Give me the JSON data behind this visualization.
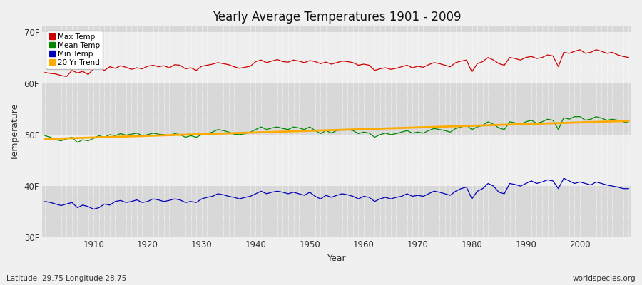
{
  "title": "Yearly Average Temperatures 1901 - 2009",
  "xlabel": "Year",
  "ylabel": "Temperature",
  "subtitle": "Latitude -29.75 Longitude 28.75",
  "watermark": "worldspecies.org",
  "years": [
    1901,
    1902,
    1903,
    1904,
    1905,
    1906,
    1907,
    1908,
    1909,
    1910,
    1911,
    1912,
    1913,
    1914,
    1915,
    1916,
    1917,
    1918,
    1919,
    1920,
    1921,
    1922,
    1923,
    1924,
    1925,
    1926,
    1927,
    1928,
    1929,
    1930,
    1931,
    1932,
    1933,
    1934,
    1935,
    1936,
    1937,
    1938,
    1939,
    1940,
    1941,
    1942,
    1943,
    1944,
    1945,
    1946,
    1947,
    1948,
    1949,
    1950,
    1951,
    1952,
    1953,
    1954,
    1955,
    1956,
    1957,
    1958,
    1959,
    1960,
    1961,
    1962,
    1963,
    1964,
    1965,
    1966,
    1967,
    1968,
    1969,
    1970,
    1971,
    1972,
    1973,
    1974,
    1975,
    1976,
    1977,
    1978,
    1979,
    1980,
    1981,
    1982,
    1983,
    1984,
    1985,
    1986,
    1987,
    1988,
    1989,
    1990,
    1991,
    1992,
    1993,
    1994,
    1995,
    1996,
    1997,
    1998,
    1999,
    2000,
    2001,
    2002,
    2003,
    2004,
    2005,
    2006,
    2007,
    2008,
    2009
  ],
  "max_temp": [
    62.1,
    61.9,
    61.8,
    61.5,
    61.3,
    62.5,
    62.0,
    62.3,
    61.7,
    62.8,
    63.0,
    62.5,
    63.2,
    62.9,
    63.4,
    63.1,
    62.7,
    63.0,
    62.8,
    63.3,
    63.5,
    63.2,
    63.4,
    63.0,
    63.6,
    63.5,
    62.8,
    63.0,
    62.5,
    63.3,
    63.5,
    63.7,
    64.0,
    63.8,
    63.6,
    63.2,
    62.9,
    63.1,
    63.3,
    64.2,
    64.5,
    64.0,
    64.3,
    64.6,
    64.2,
    64.1,
    64.5,
    64.3,
    64.0,
    64.4,
    64.2,
    63.8,
    64.1,
    63.7,
    64.0,
    64.3,
    64.2,
    64.0,
    63.5,
    63.7,
    63.5,
    62.5,
    62.8,
    63.0,
    62.7,
    62.9,
    63.2,
    63.5,
    63.0,
    63.3,
    63.1,
    63.6,
    64.0,
    63.8,
    63.5,
    63.2,
    64.0,
    64.3,
    64.5,
    62.2,
    63.8,
    64.2,
    65.0,
    64.5,
    63.8,
    63.5,
    65.0,
    64.8,
    64.5,
    65.0,
    65.2,
    64.8,
    65.0,
    65.5,
    65.3,
    63.2,
    66.0,
    65.8,
    66.2,
    66.5,
    65.8,
    66.0,
    66.5,
    66.2,
    65.8,
    66.0,
    65.5,
    65.2,
    65.0
  ],
  "mean_temp": [
    49.8,
    49.5,
    49.0,
    48.8,
    49.2,
    49.5,
    48.5,
    49.0,
    48.8,
    49.3,
    49.8,
    49.5,
    50.0,
    49.8,
    50.2,
    49.9,
    50.1,
    50.3,
    49.8,
    50.0,
    50.3,
    50.1,
    50.0,
    49.8,
    50.2,
    50.0,
    49.5,
    49.8,
    49.5,
    50.0,
    50.2,
    50.5,
    51.0,
    50.8,
    50.5,
    50.1,
    50.0,
    50.2,
    50.5,
    51.0,
    51.5,
    51.0,
    51.3,
    51.5,
    51.2,
    51.0,
    51.5,
    51.3,
    51.0,
    51.5,
    50.8,
    50.2,
    50.8,
    50.3,
    50.8,
    51.0,
    51.0,
    50.8,
    50.2,
    50.5,
    50.3,
    49.5,
    50.0,
    50.3,
    50.0,
    50.2,
    50.5,
    50.8,
    50.3,
    50.5,
    50.3,
    50.8,
    51.2,
    51.0,
    50.8,
    50.5,
    51.2,
    51.5,
    51.8,
    51.0,
    51.5,
    51.8,
    52.5,
    52.0,
    51.3,
    51.0,
    52.5,
    52.3,
    52.0,
    52.5,
    52.8,
    52.2,
    52.5,
    53.0,
    52.8,
    51.0,
    53.3,
    53.0,
    53.5,
    53.5,
    52.8,
    53.0,
    53.5,
    53.2,
    52.8,
    53.0,
    52.8,
    52.5,
    52.3
  ],
  "min_temp": [
    37.0,
    36.8,
    36.5,
    36.2,
    36.5,
    36.8,
    35.8,
    36.3,
    36.0,
    35.5,
    35.8,
    36.5,
    36.3,
    37.0,
    37.2,
    36.8,
    37.0,
    37.3,
    36.8,
    37.0,
    37.5,
    37.3,
    37.0,
    37.2,
    37.5,
    37.3,
    36.8,
    37.0,
    36.8,
    37.5,
    37.8,
    38.0,
    38.5,
    38.3,
    38.0,
    37.8,
    37.5,
    37.8,
    38.0,
    38.5,
    39.0,
    38.5,
    38.8,
    39.0,
    38.8,
    38.5,
    38.8,
    38.5,
    38.2,
    38.8,
    38.0,
    37.5,
    38.2,
    37.8,
    38.2,
    38.5,
    38.3,
    38.0,
    37.5,
    38.0,
    37.8,
    37.0,
    37.5,
    37.8,
    37.5,
    37.8,
    38.0,
    38.5,
    38.0,
    38.2,
    38.0,
    38.5,
    39.0,
    38.8,
    38.5,
    38.2,
    39.0,
    39.5,
    39.8,
    37.5,
    39.0,
    39.5,
    40.5,
    40.0,
    38.8,
    38.5,
    40.5,
    40.3,
    40.0,
    40.5,
    41.0,
    40.5,
    40.8,
    41.2,
    41.0,
    39.5,
    41.5,
    41.0,
    40.5,
    40.8,
    40.5,
    40.2,
    40.8,
    40.5,
    40.2,
    40.0,
    39.8,
    39.5,
    39.5
  ],
  "bg_color": "#f0f0f0",
  "plot_bg_color": "#e8e8e8",
  "band_light": "#eeeeee",
  "band_dark": "#d8d8d8",
  "grid_color": "#ffffff",
  "max_color": "#cc0000",
  "mean_color": "#008800",
  "min_color": "#0000bb",
  "trend_color": "#ffaa00",
  "ylim": [
    30,
    71
  ],
  "yticks": [
    30,
    40,
    50,
    60,
    70
  ],
  "ytick_labels": [
    "30F",
    "40F",
    "50F",
    "60F",
    "70F"
  ],
  "xtick_start": 1910,
  "xtick_end": 2000,
  "xtick_step": 10
}
